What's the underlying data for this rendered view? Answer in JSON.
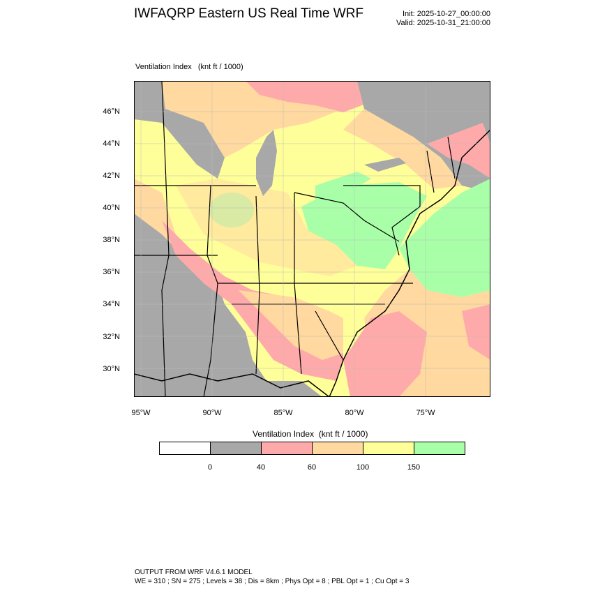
{
  "header": {
    "title": "IWFAQRP Eastern US Real Time WRF",
    "init": "Init: 2025-10-27_00:00:00",
    "valid": "Valid: 2025-10-31_21:00:00"
  },
  "map": {
    "variable_label": "Ventilation Index   (knt ft / 1000)",
    "lat_labels": [
      "46°N",
      "44°N",
      "42°N",
      "40°N",
      "38°N",
      "36°N",
      "34°N",
      "32°N",
      "30°N"
    ],
    "lon_labels": [
      "95°W",
      "90°W",
      "85°W",
      "80°W",
      "75°W"
    ]
  },
  "colorbar": {
    "title": "Ventilation Index  (knt ft / 1000)",
    "ticks": [
      "0",
      "40",
      "60",
      "100",
      "150"
    ],
    "colors": [
      "#ffffff",
      "#a8a8a8",
      "#ffaaaa",
      "#ffd9a0",
      "#ffff9a",
      "#a8ffa8"
    ]
  },
  "footer": {
    "line1": "OUTPUT FROM WRF V4.6.1 MODEL",
    "line2": "WE = 310 ; SN = 275 ; Levels = 38 ; Dis = 8km ; Phys Opt = 8 ; PBL Opt = 1 ; Cu Opt = 3"
  }
}
